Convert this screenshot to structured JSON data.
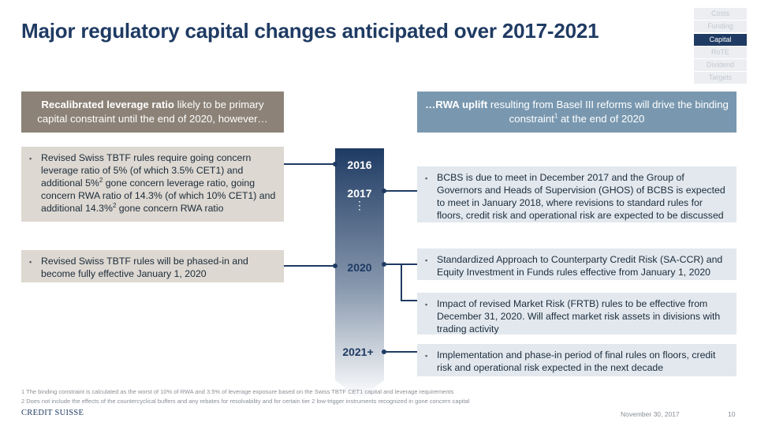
{
  "title": "Major regulatory capital changes anticipated over 2017-2021",
  "nav": [
    "Costs",
    "Funding",
    "Capital",
    "RoTE",
    "Dividend",
    "Targets"
  ],
  "nav_active": "Capital",
  "header_left": {
    "bold": "Recalibrated leverage ratio",
    "text": " likely to be primary capital constraint until the end of 2020, however…"
  },
  "header_right": {
    "prefix": "…",
    "bold": "RWA uplift",
    "text1": " resulting from Basel III reforms will drive the binding constraint",
    "sup": "1",
    "text2": " at the end of 2020"
  },
  "left_boxes": {
    "box1": {
      "t1": "Revised Swiss TBTF rules require going concern leverage ratio of 5% (of which 3.5% CET1) and additional 5%",
      "sup1": "2",
      "t2": " gone concern leverage ratio, going concern RWA ratio of 14.3% (of which 10% CET1) and additional 14.3%",
      "sup2": "2",
      "t3": " gone concern RWA ratio"
    },
    "box2": "Revised Swiss TBTF rules will be phased-in and become fully effective January 1, 2020"
  },
  "right_boxes": {
    "box1": "BCBS is due to meet in December 2017 and the Group of Governors and Heads of Supervision (GHOS) of BCBS is expected to meet in January 2018, where revisions to standard rules for floors, credit risk and operational risk are expected to be discussed",
    "box2": "Standardized Approach to Counterparty Credit Risk (SA-CCR) and Equity Investment in Funds rules effective from January 1, 2020",
    "box3": "Impact of revised Market Risk (FRTB) rules to be effective from December 31, 2020. Will affect market risk assets in divisions with trading activity",
    "box4": "Implementation and phase-in period of final rules on floors, credit risk and operational risk expected in the next decade"
  },
  "timeline": {
    "year_2016": "2016",
    "year_2017": "2017",
    "year_2020": "2020",
    "year_2021": "2021+",
    "dots": "⋮"
  },
  "bullet": "▪",
  "footnotes": [
    "1 The binding constraint is calculated as the worst of 10% of RWA and 3.5% of leverage exposure based on the Swiss TBTF CET1 capital and leverage requirements",
    "2 Does not include the effects of the countercyclical buffers and any rebates for resolvability and for certain tier 2 low-trigger instruments recognized in gone concern capital"
  ],
  "logo": "CREDIT SUISSE",
  "date": "November 30, 2017",
  "page_number": "10",
  "colors": {
    "title": "#1f3b63",
    "header_left_bg": "#8c8277",
    "header_right_bg": "#7998b0",
    "box_beige": "#ddd8d1",
    "box_blue": "#e2e8ee",
    "timeline_top": "#1f3b63",
    "timeline_bottom": "#ffffff"
  }
}
